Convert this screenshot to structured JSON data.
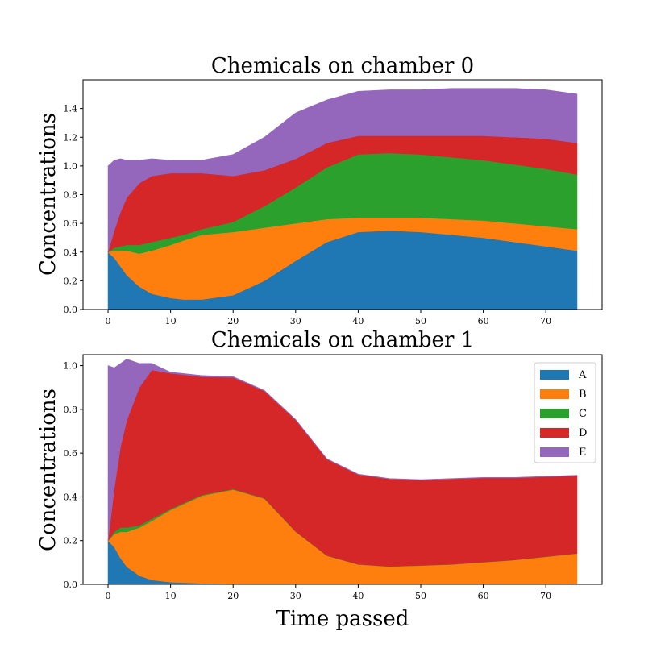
{
  "colors": {
    "A": "#1f77b4",
    "B": "#ff7f0e",
    "C": "#2ca02c",
    "D": "#d62728",
    "E": "#9467bd"
  },
  "legend": [
    "A",
    "B",
    "C",
    "D",
    "E"
  ],
  "xlabel": "Time passed",
  "chart_data": [
    {
      "type": "area",
      "stacked": true,
      "title": "Chemicals on chamber 0",
      "ylabel": "Concentrations",
      "xlabel": "",
      "xlim": [
        -4,
        79
      ],
      "ylim": [
        0,
        1.6
      ],
      "xticks": [
        0,
        10,
        20,
        30,
        40,
        50,
        60,
        70
      ],
      "yticks": [
        0.0,
        0.2,
        0.4,
        0.6,
        0.8,
        1.0,
        1.2,
        1.4
      ],
      "x": [
        0,
        1,
        2,
        3,
        5,
        7,
        10,
        12,
        15,
        20,
        25,
        30,
        35,
        40,
        45,
        50,
        55,
        60,
        65,
        70,
        75
      ],
      "series": [
        {
          "name": "A",
          "values": [
            0.4,
            0.36,
            0.3,
            0.24,
            0.16,
            0.11,
            0.08,
            0.07,
            0.07,
            0.1,
            0.2,
            0.34,
            0.47,
            0.54,
            0.55,
            0.54,
            0.52,
            0.5,
            0.47,
            0.44,
            0.41
          ]
        },
        {
          "name": "B",
          "values": [
            0.0,
            0.05,
            0.11,
            0.17,
            0.23,
            0.3,
            0.37,
            0.41,
            0.45,
            0.44,
            0.37,
            0.26,
            0.16,
            0.1,
            0.09,
            0.1,
            0.11,
            0.12,
            0.13,
            0.14,
            0.15
          ]
        },
        {
          "name": "C",
          "values": [
            0.0,
            0.02,
            0.03,
            0.04,
            0.06,
            0.06,
            0.05,
            0.04,
            0.04,
            0.07,
            0.15,
            0.25,
            0.36,
            0.44,
            0.45,
            0.44,
            0.43,
            0.42,
            0.41,
            0.4,
            0.38
          ]
        },
        {
          "name": "D",
          "values": [
            0.0,
            0.12,
            0.24,
            0.33,
            0.43,
            0.46,
            0.45,
            0.43,
            0.39,
            0.32,
            0.25,
            0.2,
            0.17,
            0.13,
            0.12,
            0.13,
            0.15,
            0.17,
            0.19,
            0.21,
            0.22
          ]
        },
        {
          "name": "E",
          "values": [
            0.6,
            0.49,
            0.37,
            0.26,
            0.16,
            0.12,
            0.09,
            0.09,
            0.09,
            0.15,
            0.23,
            0.32,
            0.3,
            0.31,
            0.32,
            0.32,
            0.33,
            0.33,
            0.34,
            0.34,
            0.34
          ]
        }
      ]
    },
    {
      "type": "area",
      "stacked": true,
      "title": "Chemicals on chamber 1",
      "ylabel": "Concentrations",
      "xlabel": "Time passed",
      "xlim": [
        -4,
        79
      ],
      "ylim": [
        0,
        1.05
      ],
      "xticks": [
        0,
        10,
        20,
        30,
        40,
        50,
        60,
        70
      ],
      "yticks": [
        0.0,
        0.2,
        0.4,
        0.6,
        0.8,
        1.0
      ],
      "x": [
        0,
        1,
        2,
        3,
        5,
        7,
        10,
        15,
        20,
        25,
        30,
        35,
        40,
        45,
        50,
        55,
        60,
        65,
        70,
        75
      ],
      "series": [
        {
          "name": "A",
          "values": [
            0.2,
            0.17,
            0.12,
            0.08,
            0.04,
            0.02,
            0.01,
            0.005,
            0.003,
            0.002,
            0.001,
            0.001,
            0.001,
            0.001,
            0.001,
            0.001,
            0.001,
            0.001,
            0.001,
            0.001
          ]
        },
        {
          "name": "B",
          "values": [
            0.0,
            0.06,
            0.12,
            0.16,
            0.22,
            0.27,
            0.33,
            0.4,
            0.43,
            0.39,
            0.24,
            0.13,
            0.09,
            0.08,
            0.085,
            0.09,
            0.1,
            0.11,
            0.125,
            0.14
          ]
        },
        {
          "name": "C",
          "values": [
            0.0,
            0.01,
            0.02,
            0.02,
            0.01,
            0.01,
            0.005,
            0.004,
            0.003,
            0.002,
            0.001,
            0.001,
            0.001,
            0.001,
            0.001,
            0.001,
            0.001,
            0.001,
            0.001,
            0.001
          ]
        },
        {
          "name": "D",
          "values": [
            0.0,
            0.2,
            0.37,
            0.49,
            0.63,
            0.68,
            0.62,
            0.54,
            0.51,
            0.49,
            0.51,
            0.44,
            0.41,
            0.4,
            0.39,
            0.39,
            0.385,
            0.375,
            0.365,
            0.355
          ]
        },
        {
          "name": "E",
          "values": [
            0.8,
            0.55,
            0.38,
            0.28,
            0.11,
            0.03,
            0.005,
            0.006,
            0.004,
            0.003,
            0.002,
            0.002,
            0.002,
            0.002,
            0.002,
            0.002,
            0.002,
            0.002,
            0.002,
            0.002
          ]
        }
      ]
    }
  ]
}
